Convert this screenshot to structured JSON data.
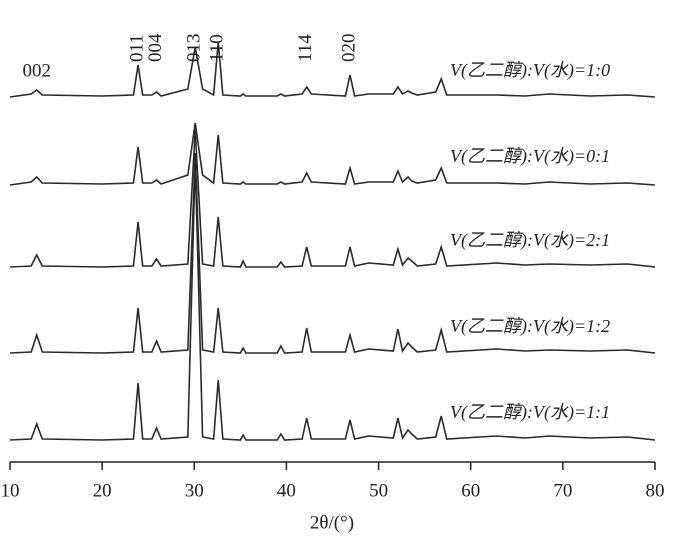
{
  "chart_data": {
    "type": "line",
    "x_label": "2θ/(°)",
    "xlim": [
      10,
      80
    ],
    "xticks": [
      10,
      20,
      30,
      40,
      50,
      60,
      70,
      80
    ],
    "x": [
      10,
      12.3,
      12.9,
      13.5,
      20,
      23.4,
      23.9,
      24.4,
      25.4,
      25.9,
      26.4,
      29.3,
      30.1,
      30.9,
      32.1,
      32.6,
      33.1,
      35,
      35.3,
      35.6,
      39,
      39.4,
      39.8,
      41.7,
      42.2,
      42.7,
      46.4,
      46.9,
      47.4,
      48.9,
      51.6,
      52.1,
      52.6,
      53.2,
      53.6,
      54.2,
      56.2,
      56.8,
      57.4,
      62.8,
      65.9,
      68.5,
      73,
      77,
      80
    ],
    "series": [
      {
        "name": "V(乙二醇):V(水)=1:0",
        "color": "#2a2a2a",
        "values": [
          0,
          3,
          7,
          2,
          1,
          2,
          32,
          2,
          2,
          5,
          1,
          8,
          50,
          8,
          2,
          55,
          2,
          1,
          3,
          1,
          1,
          3,
          1,
          3,
          10,
          3,
          1,
          22,
          1,
          3,
          3,
          10,
          3,
          6,
          4,
          2,
          5,
          18,
          2,
          2,
          1,
          3,
          1,
          2,
          0
        ]
      },
      {
        "name": "V(乙二醇):V(水)=0:1",
        "color": "#2a2a2a",
        "values": [
          0,
          3,
          8,
          2,
          1,
          2,
          38,
          2,
          2,
          5,
          1,
          10,
          62,
          10,
          2,
          50,
          2,
          1,
          3,
          1,
          1,
          3,
          1,
          3,
          12,
          3,
          1,
          17,
          1,
          3,
          3,
          14,
          3,
          8,
          4,
          2,
          5,
          17,
          2,
          2,
          1,
          3,
          1,
          2,
          0
        ]
      },
      {
        "name": "V(乙二醇):V(水)=2:1",
        "color": "#2a2a2a",
        "values": [
          0,
          1,
          12,
          1,
          0,
          1,
          45,
          1,
          1,
          8,
          1,
          3,
          137,
          3,
          1,
          50,
          1,
          0,
          6,
          0,
          0,
          5,
          0,
          1,
          20,
          1,
          1,
          20,
          1,
          4,
          2,
          18,
          2,
          9,
          6,
          1,
          3,
          20,
          1,
          4,
          2,
          3,
          2,
          3,
          0
        ]
      },
      {
        "name": "V(乙二醇):V(水)=1:2",
        "color": "#2a2a2a",
        "values": [
          0,
          1,
          18,
          1,
          0,
          1,
          45,
          1,
          1,
          12,
          1,
          3,
          200,
          3,
          1,
          45,
          1,
          0,
          5,
          0,
          0,
          7,
          0,
          1,
          25,
          1,
          1,
          18,
          1,
          4,
          2,
          24,
          2,
          10,
          6,
          1,
          3,
          23,
          1,
          4,
          2,
          3,
          2,
          3,
          0
        ]
      },
      {
        "name": "V(乙二醇):V(水)=1:1",
        "color": "#2a2a2a",
        "values": [
          0,
          1,
          16,
          1,
          0,
          1,
          57,
          1,
          1,
          12,
          1,
          3,
          280,
          3,
          1,
          60,
          1,
          0,
          5,
          0,
          0,
          6,
          0,
          1,
          22,
          1,
          1,
          20,
          1,
          4,
          2,
          22,
          2,
          10,
          6,
          1,
          3,
          24,
          1,
          4,
          2,
          4,
          2,
          3,
          0
        ]
      }
    ],
    "annotations": [
      {
        "text": "002",
        "x": 12.9
      },
      {
        "text": "011",
        "x": 23.9
      },
      {
        "text": "004",
        "x": 25.9
      },
      {
        "text": "013",
        "x": 30.1
      },
      {
        "text": "110",
        "x": 32.6
      },
      {
        "text": "114",
        "x": 42.2
      },
      {
        "text": "020",
        "x": 46.9
      }
    ]
  }
}
